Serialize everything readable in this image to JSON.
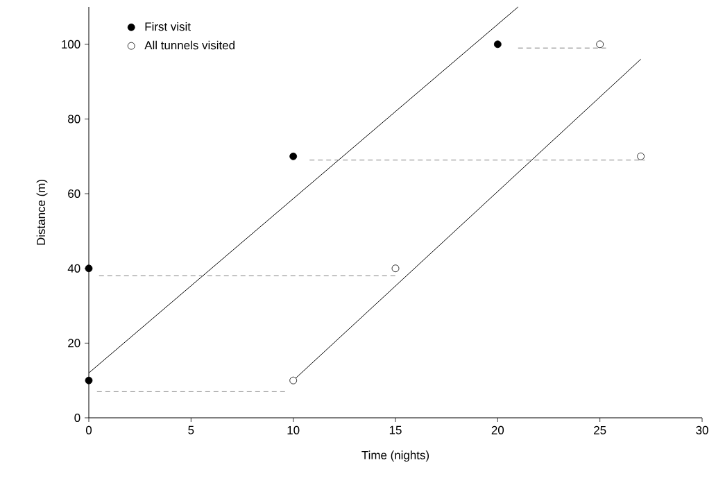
{
  "chart_data": {
    "type": "scatter",
    "xlabel": "Time (nights)",
    "ylabel": "Distance (m)",
    "xlim": [
      0,
      30
    ],
    "ylim": [
      0,
      110
    ],
    "xticks": [
      0,
      5,
      10,
      15,
      20,
      25,
      30
    ],
    "yticks": [
      0,
      20,
      40,
      60,
      80,
      100
    ],
    "grid": false,
    "legend": "top left",
    "marker": "circle",
    "series": [
      {
        "name": "First visit",
        "color": "#000000",
        "x": [
          0,
          0,
          10,
          20
        ],
        "values": [
          10,
          40,
          70,
          100
        ]
      },
      {
        "name": "All tunnels visited",
        "color": "#ffffff",
        "x": [
          10,
          15,
          27,
          25
        ],
        "values": [
          10,
          40,
          70,
          100
        ]
      },
      {
        "type": "line",
        "color": "#000000",
        "marker": "none",
        "x": [
          0,
          21
        ],
        "values": [
          12,
          110
        ]
      },
      {
        "type": "line",
        "color": "#000000",
        "marker": "none",
        "x": [
          10,
          27
        ],
        "values": [
          10,
          96
        ]
      },
      {
        "type": "line",
        "color": "#808080",
        "marker": "none",
        "line_style": "dashed",
        "x": [
          0.4,
          9.7
        ],
        "values": [
          7,
          7
        ]
      },
      {
        "type": "line",
        "color": "#808080",
        "marker": "none",
        "line_style": "dashed",
        "x": [
          0.5,
          15
        ],
        "values": [
          38,
          38
        ]
      },
      {
        "type": "line",
        "color": "#808080",
        "marker": "none",
        "line_style": "dashed",
        "x": [
          10.8,
          27.2
        ],
        "values": [
          69,
          69
        ]
      },
      {
        "type": "line",
        "color": "#808080",
        "marker": "none",
        "line_style": "dashed",
        "x": [
          21,
          25.3
        ],
        "values": [
          99,
          99
        ]
      }
    ]
  }
}
